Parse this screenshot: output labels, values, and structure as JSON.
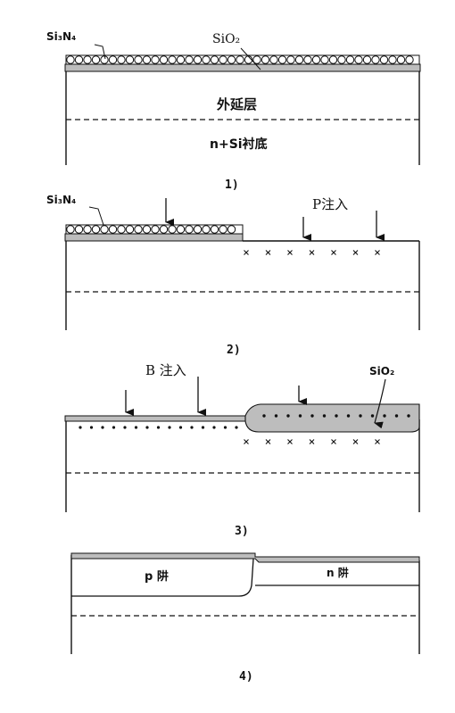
{
  "step1": {
    "label_si3n4": "Si₃N₄",
    "label_sio2": "SiO₂",
    "label_epi": "外延层",
    "label_substrate": "n+Si衬底",
    "caption": "1)"
  },
  "step2": {
    "label_si3n4": "Si₃N₄",
    "label_p_implant": "P注入",
    "caption": "2)"
  },
  "step3": {
    "label_b_implant": "B 注入",
    "label_sio2": "SiO₂",
    "caption": "3)"
  },
  "step4": {
    "label_p_well": "p 阱",
    "label_n_well": "n 阱",
    "caption": "4)"
  },
  "colors": {
    "ink": "#111111",
    "oxide": "#bdbdbd",
    "background": "#ffffff"
  }
}
